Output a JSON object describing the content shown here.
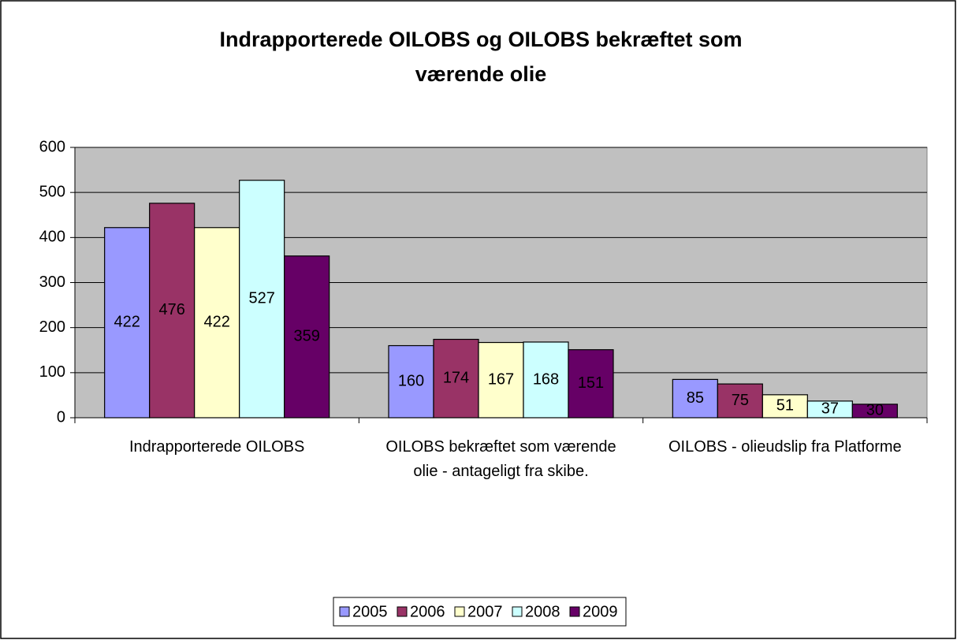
{
  "chart_data": {
    "type": "bar",
    "title": "Indrapporterede OILOBS og OILOBS bekræftet som værende olie",
    "categories": [
      "Indrapporterede OILOBS",
      "OILOBS bekræftet som værende olie - antageligt fra skibe.",
      "OILOBS - olieudslip fra Platforme"
    ],
    "series": [
      {
        "name": "2005",
        "color": "#9999ff",
        "values": [
          422,
          160,
          85
        ]
      },
      {
        "name": "2006",
        "color": "#993366",
        "values": [
          476,
          174,
          75
        ]
      },
      {
        "name": "2007",
        "color": "#ffffcc",
        "values": [
          422,
          167,
          51
        ]
      },
      {
        "name": "2008",
        "color": "#ccffff",
        "values": [
          527,
          168,
          37
        ]
      },
      {
        "name": "2009",
        "color": "#660066",
        "values": [
          359,
          151,
          30
        ]
      }
    ],
    "ylim": [
      0,
      600
    ],
    "yticks": [
      0,
      100,
      200,
      300,
      400,
      500,
      600
    ],
    "grid": true,
    "legend": "bottom",
    "plot_background": "#c0c0c0"
  }
}
